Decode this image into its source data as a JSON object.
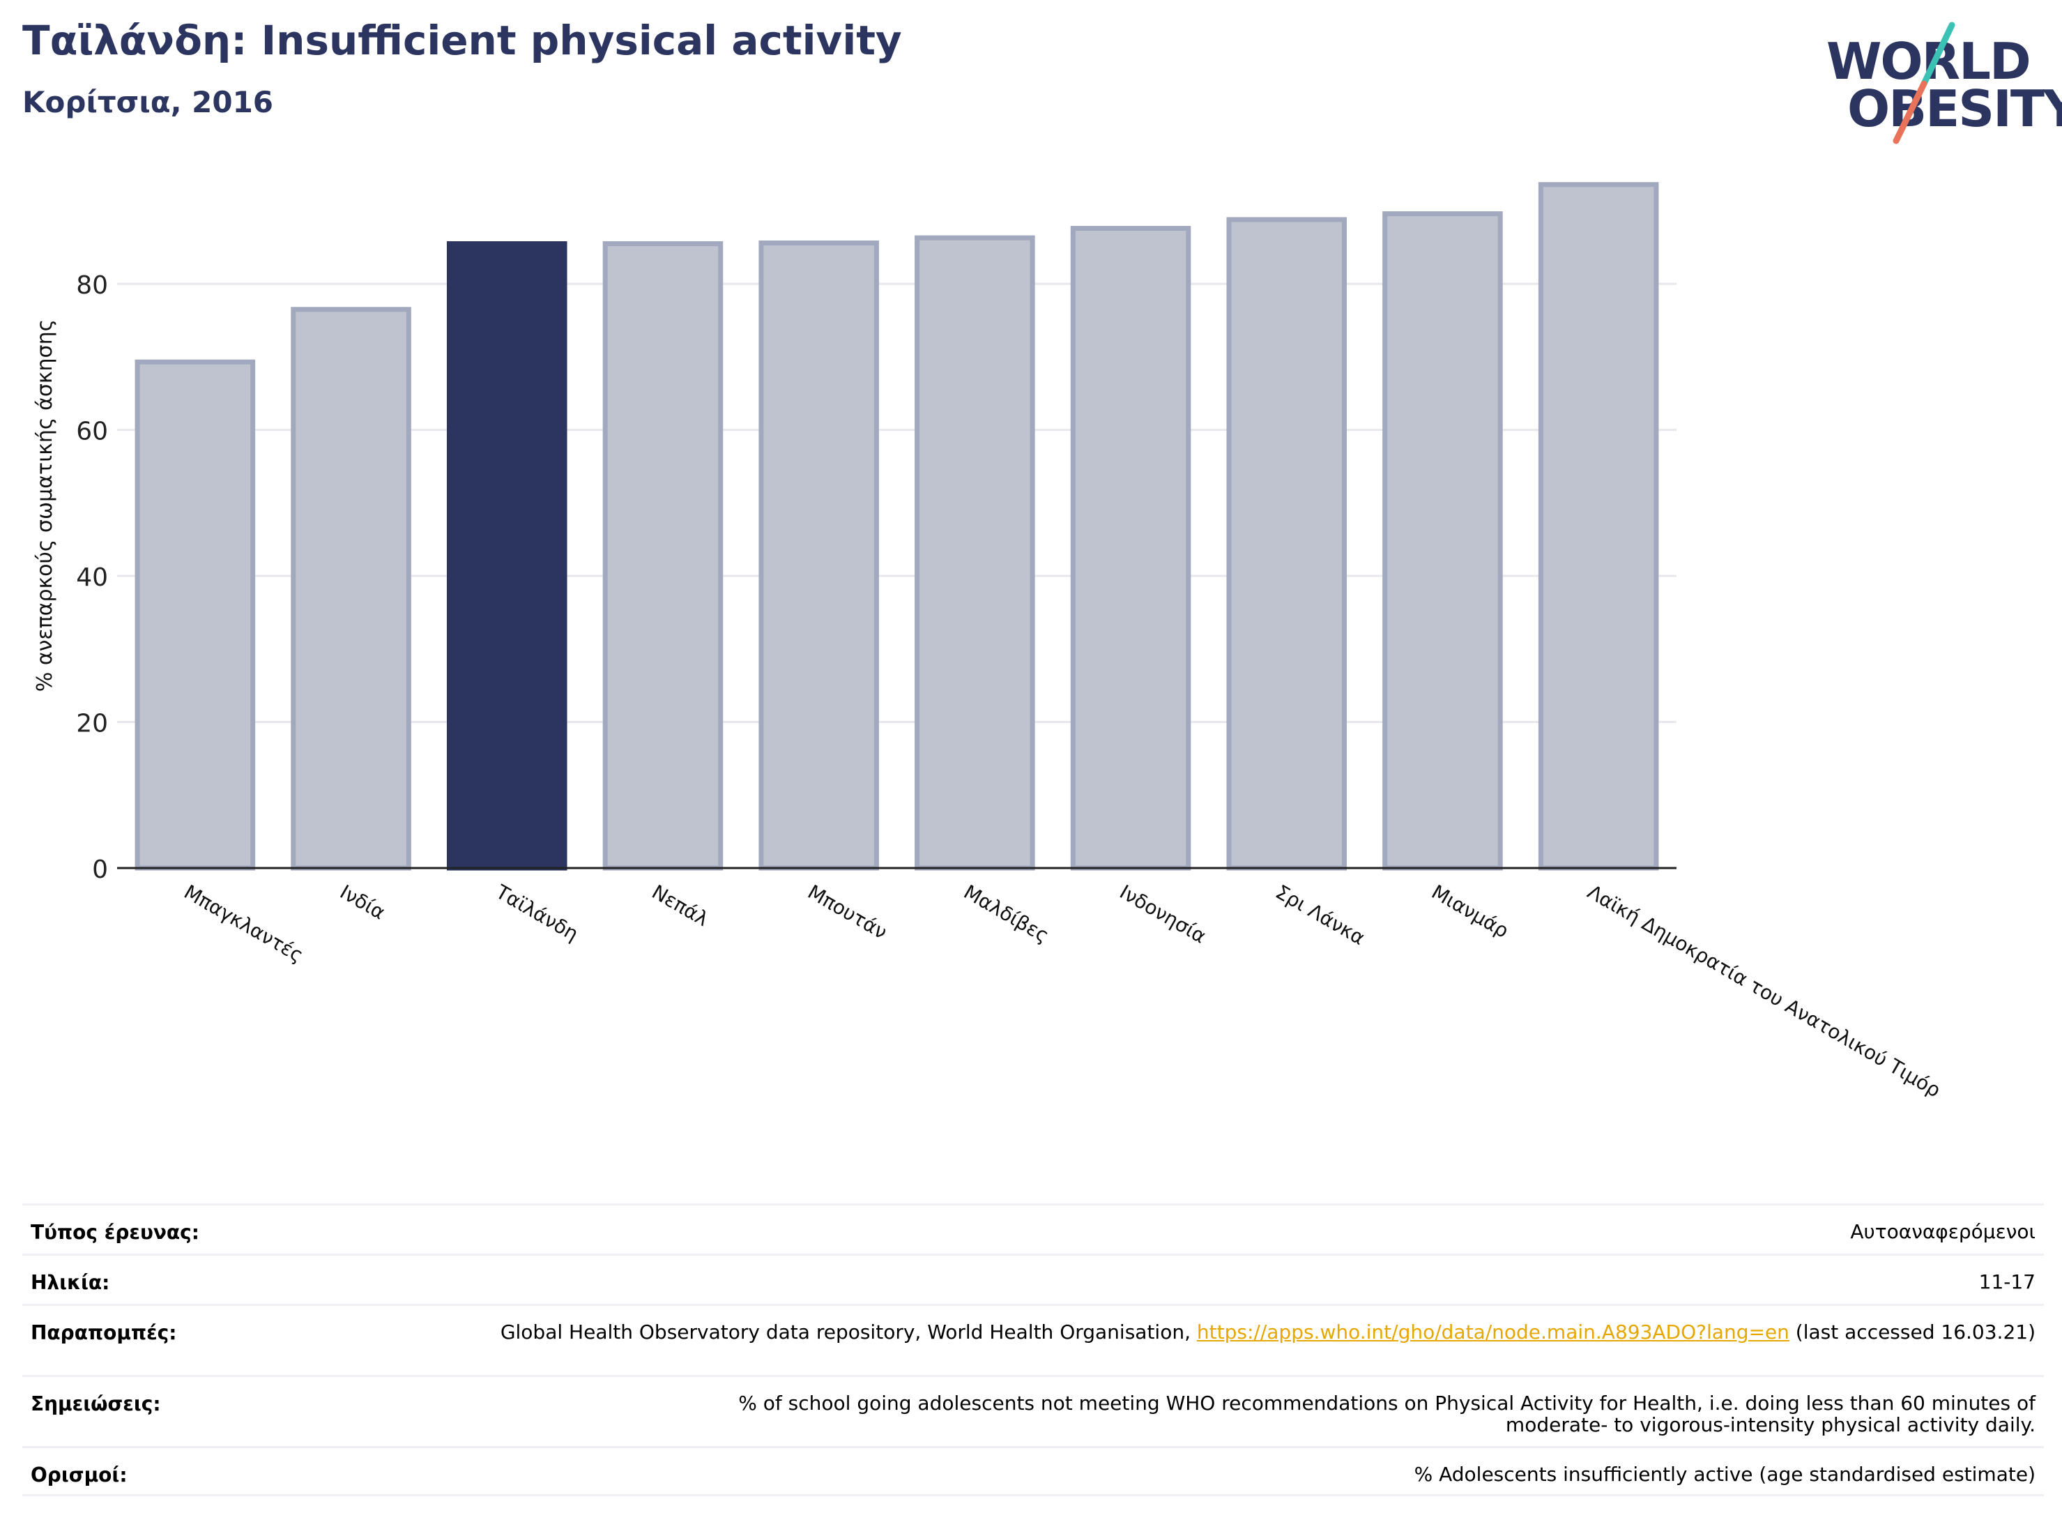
{
  "header": {
    "title": "Ταϊλάνδη: Insufficient physical activity",
    "subtitle": "Κορίτσια, 2016"
  },
  "logo": {
    "line1": "WORLD",
    "line2": "OBESITY",
    "colors": {
      "text": "#2b3560",
      "slash_top": "#3cc2b4",
      "slash_bottom": "#e8735a"
    }
  },
  "chart_data": {
    "type": "bar",
    "title": "",
    "xlabel": "",
    "ylabel": "% ανεπαρκούς σωματικής άσκησης",
    "ylim": [
      0,
      95
    ],
    "yticks": [
      0,
      20,
      40,
      60,
      80
    ],
    "grid": true,
    "highlight_index": 2,
    "categories": [
      "Μπαγκλαντές",
      "Ινδία",
      "Ταϊλάνδη",
      "Νεπάλ",
      "Μπουτάν",
      "Μαλδίβες",
      "Ινδονησία",
      "Σρι Λάνκα",
      "Μιανμάρ",
      "Λαϊκή Δημοκρατία του Ανατολικού Τιμόρ"
    ],
    "values": [
      69.3,
      76.5,
      85.5,
      85.5,
      85.6,
      86.3,
      87.6,
      88.8,
      89.6,
      93.6
    ],
    "colors": {
      "bar": "#bfc2cf",
      "bar_edge": "#a2a8bd",
      "highlight": "#2b3560",
      "grid": "#e8e8ec",
      "axis": "#222222"
    }
  },
  "info": {
    "survey_type": {
      "label": "Τύπος έρευνας:",
      "value": "Αυτοαναφερόμενοι"
    },
    "age": {
      "label": "Ηλικία:",
      "value": "11-17"
    },
    "references": {
      "label": "Παραπομπές:",
      "prefix": "Global Health Observatory data repository, World Health Organisation, ",
      "link": "https://apps.who.int/gho/data/node.main.A893ADO?lang=en",
      "suffix": " (last accessed 16.03.21)"
    },
    "notes": {
      "label": "Σημειώσεις:",
      "value": "% of school going adolescents not meeting WHO recommendations on Physical Activity for Health, i.e. doing less than 60 minutes of moderate- to vigorous-intensity physical activity daily."
    },
    "definitions": {
      "label": "Ορισμοί:",
      "value": "% Adolescents insufficiently active (age standardised estimate)"
    }
  }
}
